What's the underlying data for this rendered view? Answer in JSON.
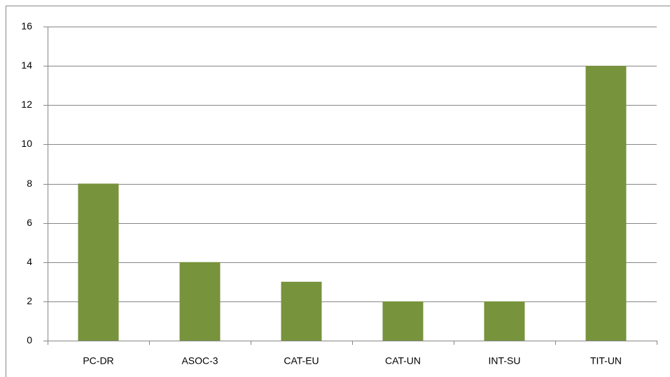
{
  "chart_data": {
    "type": "bar",
    "categories": [
      "PC-DR",
      "ASOC-3",
      "CAT-EU",
      "CAT-UN",
      "INT-SU",
      "TIT-UN"
    ],
    "values": [
      8,
      4,
      3,
      2,
      2,
      14
    ],
    "color": "#77933c",
    "ylim": [
      0,
      16
    ],
    "yticks": [
      0,
      2,
      4,
      6,
      8,
      10,
      12,
      14,
      16
    ],
    "grid": true
  }
}
